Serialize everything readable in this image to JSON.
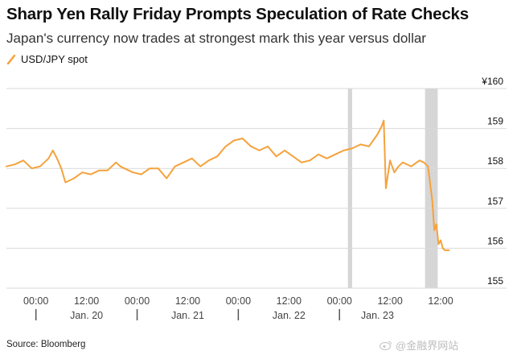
{
  "header": {
    "title": "Sharp Yen Rally Friday Prompts Speculation of Rate Checks",
    "subtitle": "Japan's currency now trades at strongest mark this year versus dollar"
  },
  "footer": {
    "source": "Source: Bloomberg",
    "watermark": "@金融界网站"
  },
  "colors": {
    "series": "#f5a23c",
    "grid": "#d9d9d9",
    "shade": "#d6d6d6",
    "text": "#111111"
  },
  "chart_data": {
    "type": "line",
    "title": "Sharp Yen Rally Friday Prompts Speculation of Rate Checks",
    "subtitle": "Japan's currency now trades at strongest mark this year versus dollar",
    "series": [
      {
        "name": "USD/JPY spot",
        "x": [
          0,
          2,
          4,
          6,
          8,
          10,
          11,
          12,
          13,
          14,
          16,
          18,
          20,
          22,
          24,
          26,
          27,
          28,
          30,
          32,
          34,
          36,
          38,
          40,
          42,
          44,
          46,
          48,
          50,
          52,
          54,
          56,
          58,
          60,
          62,
          64,
          66,
          68,
          70,
          72,
          74,
          76,
          78,
          80,
          82,
          84,
          86,
          88,
          89,
          89.5,
          90,
          91,
          92,
          93,
          94,
          96,
          98,
          99,
          100,
          101,
          101.5,
          102,
          102.5,
          103,
          103.5,
          104,
          105
        ],
        "values": [
          158.05,
          158.1,
          158.2,
          158.0,
          158.05,
          158.25,
          158.45,
          158.25,
          158.0,
          157.65,
          157.75,
          157.9,
          157.85,
          157.95,
          157.95,
          158.15,
          158.05,
          158.0,
          157.9,
          157.85,
          158.0,
          158.0,
          157.75,
          158.05,
          158.15,
          158.25,
          158.05,
          158.2,
          158.3,
          158.55,
          158.7,
          158.75,
          158.55,
          158.45,
          158.55,
          158.3,
          158.45,
          158.3,
          158.15,
          158.2,
          158.35,
          158.25,
          158.35,
          158.45,
          158.5,
          158.6,
          158.55,
          158.85,
          159.05,
          159.2,
          157.5,
          158.2,
          157.9,
          158.05,
          158.15,
          158.05,
          158.2,
          158.15,
          158.05,
          157.2,
          156.45,
          156.6,
          156.1,
          156.2,
          156.0,
          155.95,
          155.95
        ]
      }
    ],
    "x_ticks": [
      {
        "x": 7,
        "label": "00:00"
      },
      {
        "x": 19,
        "label": "12:00"
      },
      {
        "x": 31,
        "label": "00:00"
      },
      {
        "x": 43,
        "label": "12:00"
      },
      {
        "x": 55,
        "label": "00:00"
      },
      {
        "x": 67,
        "label": "12:00"
      },
      {
        "x": 79,
        "label": "00:00"
      },
      {
        "x": 91,
        "label": "12:00"
      },
      {
        "x": 103,
        "label": "12:00"
      }
    ],
    "day_labels": [
      {
        "x": 19,
        "label": "Jan. 20"
      },
      {
        "x": 43,
        "label": "Jan. 21"
      },
      {
        "x": 67,
        "label": "Jan. 22"
      },
      {
        "x": 88,
        "label": "Jan. 23"
      }
    ],
    "day_dividers": [
      7,
      31,
      55,
      79
    ],
    "shaded_ranges": [
      [
        81,
        82
      ],
      [
        99.3,
        102.3
      ]
    ],
    "x_range": [
      0,
      111
    ],
    "y_ticks": [
      {
        "value": 160,
        "label": "¥160"
      },
      {
        "value": 159,
        "label": "159"
      },
      {
        "value": 158,
        "label": "158"
      },
      {
        "value": 157,
        "label": "157"
      },
      {
        "value": 156,
        "label": "156"
      },
      {
        "value": 155,
        "label": "155"
      }
    ],
    "ylim": [
      155,
      160
    ],
    "legend": "USD/JPY spot",
    "legend_position": "top-left",
    "grid": true
  }
}
